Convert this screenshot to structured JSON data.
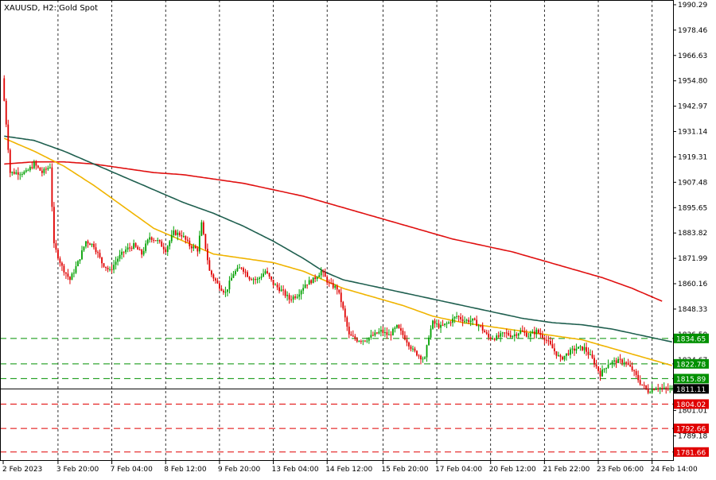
{
  "chart_data": {
    "type": "candlestick",
    "title": "XAUUSD, H2:  Gold Spot",
    "symbol": "XAUUSD",
    "timeframe": "H2",
    "description": "Gold Spot",
    "ylim": [
      1777.5,
      1992.5
    ],
    "y_ticks": [
      "1990.29",
      "1978.46",
      "1966.63",
      "1954.80",
      "1942.97",
      "1931.14",
      "1919.31",
      "1907.48",
      "1895.65",
      "1883.82",
      "1871.99",
      "1860.16",
      "1848.33",
      "1836.50",
      "1824.67",
      "1801.01",
      "1789.18"
    ],
    "x_ticks": [
      "2 Feb 2023",
      "3 Feb 20:00",
      "7 Feb 04:00",
      "8 Feb 12:00",
      "9 Feb 20:00",
      "13 Feb 04:00",
      "14 Feb 12:00",
      "15 Feb 20:00",
      "17 Feb 04:00",
      "20 Feb 12:00",
      "21 Feb 22:00",
      "23 Feb 06:00",
      "24 Feb 14:00"
    ],
    "grid": true,
    "colors": {
      "bull": "#00a000",
      "bear": "#e00000",
      "ma_fast": "#f0b400",
      "ma_mid": "#1f5f4f",
      "ma_slow": "#e01010",
      "support_lines": "#e00000",
      "resistance_lines": "#009000",
      "current_price": "#000000"
    },
    "price_levels": [
      {
        "label": "1834.65",
        "value": 1834.65,
        "color": "#009000"
      },
      {
        "label": "1822.78",
        "value": 1822.78,
        "color": "#009000"
      },
      {
        "label": "1815.89",
        "value": 1815.89,
        "color": "#009000"
      },
      {
        "label": "1811.11",
        "value": 1811.11,
        "color": "#000000"
      },
      {
        "label": "1804.02",
        "value": 1804.02,
        "color": "#e00000"
      },
      {
        "label": "1792.66",
        "value": 1792.66,
        "color": "#e00000"
      },
      {
        "label": "1781.66",
        "value": 1781.66,
        "color": "#e00000"
      }
    ],
    "price_path": [
      [
        0,
        1956
      ],
      [
        2,
        1935
      ],
      [
        4,
        1912
      ],
      [
        8,
        1912
      ],
      [
        12,
        1912
      ],
      [
        16,
        1916
      ],
      [
        20,
        1912
      ],
      [
        24,
        1915
      ],
      [
        26,
        1878
      ],
      [
        30,
        1868
      ],
      [
        34,
        1862
      ],
      [
        38,
        1870
      ],
      [
        42,
        1880
      ],
      [
        46,
        1878
      ],
      [
        50,
        1870
      ],
      [
        54,
        1866
      ],
      [
        58,
        1872
      ],
      [
        62,
        1876
      ],
      [
        66,
        1878
      ],
      [
        70,
        1874
      ],
      [
        74,
        1882
      ],
      [
        78,
        1880
      ],
      [
        82,
        1876
      ],
      [
        86,
        1884
      ],
      [
        90,
        1883
      ],
      [
        94,
        1878
      ],
      [
        98,
        1876
      ],
      [
        100,
        1888
      ],
      [
        104,
        1866
      ],
      [
        108,
        1860
      ],
      [
        112,
        1856
      ],
      [
        116,
        1865
      ],
      [
        120,
        1868
      ],
      [
        124,
        1863
      ],
      [
        128,
        1862
      ],
      [
        132,
        1866
      ],
      [
        136,
        1860
      ],
      [
        140,
        1857
      ],
      [
        144,
        1853
      ],
      [
        148,
        1855
      ],
      [
        152,
        1860
      ],
      [
        156,
        1862
      ],
      [
        160,
        1866
      ],
      [
        164,
        1860
      ],
      [
        168,
        1858
      ],
      [
        170,
        1852
      ],
      [
        174,
        1836
      ],
      [
        178,
        1834
      ],
      [
        182,
        1834
      ],
      [
        186,
        1836
      ],
      [
        190,
        1838
      ],
      [
        194,
        1836
      ],
      [
        198,
        1840
      ],
      [
        202,
        1835
      ],
      [
        206,
        1829
      ],
      [
        210,
        1826
      ],
      [
        212,
        1825
      ],
      [
        214,
        1836
      ],
      [
        216,
        1842
      ],
      [
        220,
        1840
      ],
      [
        224,
        1842
      ],
      [
        228,
        1845
      ],
      [
        232,
        1843
      ],
      [
        236,
        1843
      ],
      [
        240,
        1840
      ],
      [
        244,
        1835
      ],
      [
        248,
        1835
      ],
      [
        252,
        1837
      ],
      [
        256,
        1836
      ],
      [
        260,
        1838
      ],
      [
        264,
        1836
      ],
      [
        268,
        1838
      ],
      [
        272,
        1835
      ],
      [
        276,
        1830
      ],
      [
        280,
        1825
      ],
      [
        284,
        1828
      ],
      [
        288,
        1830
      ],
      [
        292,
        1830
      ],
      [
        296,
        1825
      ],
      [
        300,
        1818
      ],
      [
        304,
        1823
      ],
      [
        308,
        1824
      ],
      [
        312,
        1824
      ],
      [
        316,
        1820
      ],
      [
        320,
        1814
      ],
      [
        324,
        1810
      ],
      [
        328,
        1812
      ],
      [
        332,
        1811
      ],
      [
        335,
        1811
      ]
    ],
    "ma_fast_path": [
      [
        0,
        1928
      ],
      [
        15,
        1922
      ],
      [
        30,
        1915
      ],
      [
        45,
        1906
      ],
      [
        60,
        1896
      ],
      [
        75,
        1886
      ],
      [
        90,
        1880
      ],
      [
        105,
        1874
      ],
      [
        120,
        1872
      ],
      [
        135,
        1870
      ],
      [
        150,
        1866
      ],
      [
        160,
        1862
      ],
      [
        170,
        1858
      ],
      [
        185,
        1854
      ],
      [
        200,
        1850
      ],
      [
        215,
        1845
      ],
      [
        230,
        1842
      ],
      [
        245,
        1840
      ],
      [
        260,
        1838
      ],
      [
        275,
        1836
      ],
      [
        290,
        1834
      ],
      [
        305,
        1830
      ],
      [
        320,
        1826
      ],
      [
        335,
        1822
      ]
    ],
    "ma_mid_path": [
      [
        0,
        1929
      ],
      [
        15,
        1927
      ],
      [
        30,
        1922
      ],
      [
        45,
        1916
      ],
      [
        60,
        1910
      ],
      [
        75,
        1904
      ],
      [
        90,
        1898
      ],
      [
        105,
        1893
      ],
      [
        120,
        1887
      ],
      [
        135,
        1880
      ],
      [
        150,
        1872
      ],
      [
        160,
        1866
      ],
      [
        170,
        1862
      ],
      [
        185,
        1859
      ],
      [
        200,
        1856
      ],
      [
        215,
        1853
      ],
      [
        230,
        1850
      ],
      [
        245,
        1847
      ],
      [
        260,
        1844
      ],
      [
        275,
        1842
      ],
      [
        290,
        1841
      ],
      [
        305,
        1839
      ],
      [
        320,
        1836
      ],
      [
        335,
        1833
      ]
    ],
    "ma_slow_path": [
      [
        0,
        1916
      ],
      [
        15,
        1917
      ],
      [
        30,
        1917
      ],
      [
        45,
        1916
      ],
      [
        60,
        1914
      ],
      [
        75,
        1912
      ],
      [
        90,
        1911
      ],
      [
        105,
        1909
      ],
      [
        120,
        1907
      ],
      [
        135,
        1904
      ],
      [
        150,
        1901
      ],
      [
        165,
        1897
      ],
      [
        180,
        1893
      ],
      [
        195,
        1889
      ],
      [
        210,
        1885
      ],
      [
        225,
        1881
      ],
      [
        240,
        1878
      ],
      [
        255,
        1875
      ],
      [
        270,
        1871
      ],
      [
        285,
        1867
      ],
      [
        300,
        1863
      ],
      [
        315,
        1858
      ],
      [
        330,
        1852
      ]
    ],
    "candle_count": 336
  }
}
